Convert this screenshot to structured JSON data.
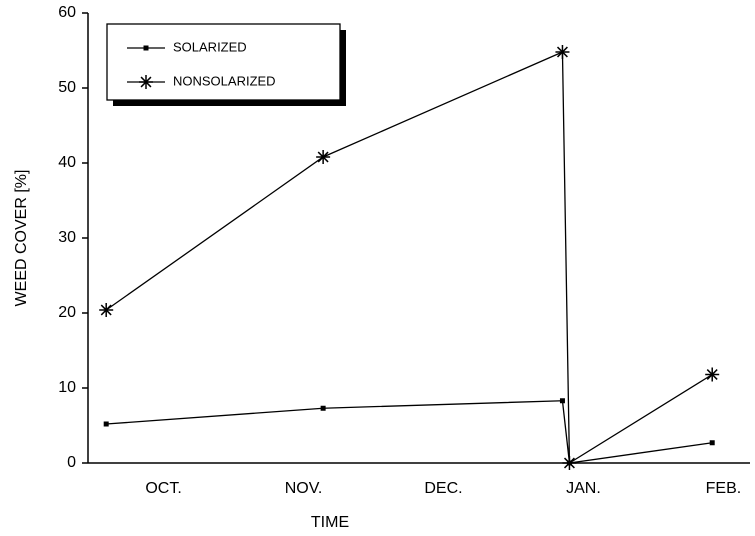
{
  "chart_data": {
    "type": "line",
    "xlabel": "TIME",
    "ylabel": "WEED COVER [%]",
    "x": [
      0.59,
      2.14,
      3.85,
      3.9,
      4.92
    ],
    "xlim": [
      0.46,
      5.19
    ],
    "xticks": [
      {
        "value": 1,
        "label": "OCT."
      },
      {
        "value": 2,
        "label": "NOV."
      },
      {
        "value": 3,
        "label": "DEC."
      },
      {
        "value": 4,
        "label": "JAN."
      },
      {
        "value": 5,
        "label": "FEB."
      }
    ],
    "ylim": [
      0,
      60
    ],
    "yticks": [
      0,
      10,
      20,
      30,
      40,
      50,
      60
    ],
    "legend": "upper left",
    "series": [
      {
        "name": "SOLARIZED",
        "color": "#000000",
        "marker": "square",
        "values": [
          5.2,
          7.3,
          8.3,
          0,
          2.7
        ]
      },
      {
        "name": "NONSOLARIZED",
        "color": "#000000",
        "marker": "star",
        "values": [
          20.4,
          40.8,
          54.8,
          0,
          11.8
        ]
      }
    ]
  }
}
